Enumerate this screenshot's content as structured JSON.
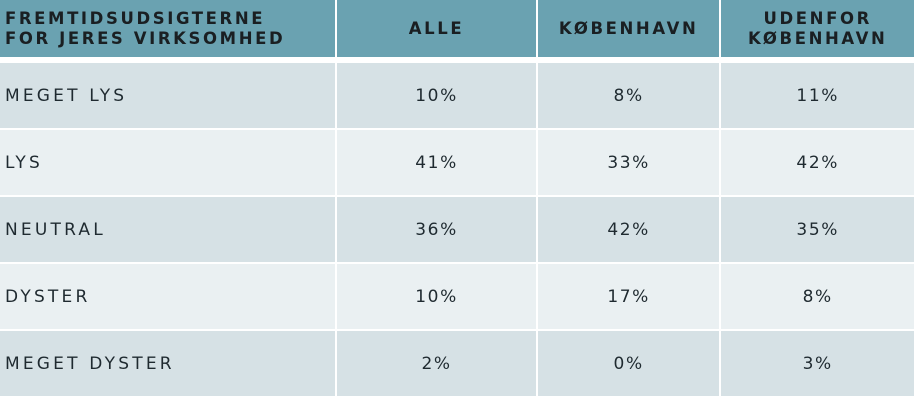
{
  "chart_data": {
    "type": "table",
    "header": {
      "label_lines": [
        "FREMTIDSUDSIGTERNE",
        "FOR JERES VIRKSOMHED"
      ],
      "columns": [
        {
          "lines": [
            "ALLE"
          ]
        },
        {
          "lines": [
            "KØBENHAVN"
          ]
        },
        {
          "lines": [
            "UDENFOR",
            "KØBENHAVN"
          ]
        }
      ]
    },
    "rows": [
      {
        "label": "MEGET LYS",
        "values": [
          "10%",
          "8%",
          "11%"
        ]
      },
      {
        "label": "LYS",
        "values": [
          "41%",
          "33%",
          "42%"
        ]
      },
      {
        "label": "NEUTRAL",
        "values": [
          "36%",
          "42%",
          "35%"
        ]
      },
      {
        "label": "DYSTER",
        "values": [
          "10%",
          "17%",
          "8%"
        ]
      },
      {
        "label": "MEGET DYSTER",
        "values": [
          "2%",
          "0%",
          "3%"
        ]
      }
    ]
  },
  "colors": {
    "header_bg": "#6aa2b1",
    "row_dark": "#d6e1e5",
    "row_light": "#eaf0f2",
    "text": "#1f2a30"
  }
}
